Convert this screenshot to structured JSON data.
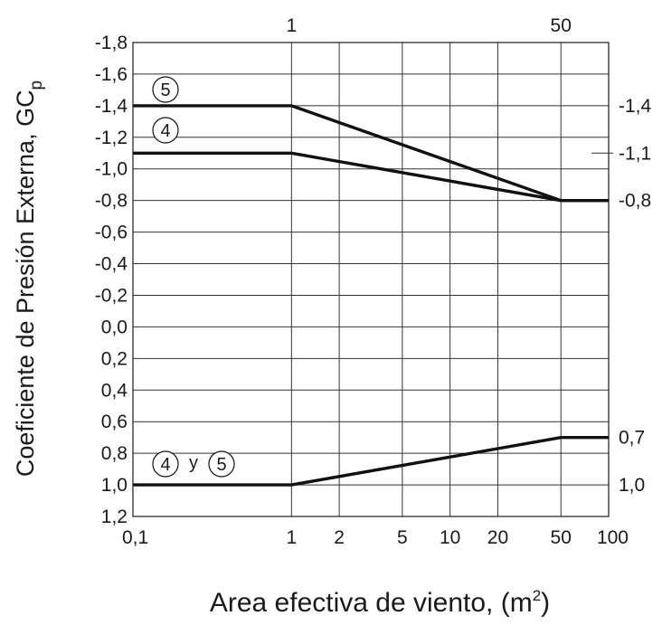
{
  "chart_data": {
    "type": "line",
    "title": "",
    "xlabel": "Area efectiva de viento, (m",
    "xlabel_sup": "2",
    "xlabel_end": ")",
    "ylabel": "Coeficiente de Presión Externa, GC",
    "ylabel_sub": "p",
    "x_scale": "log",
    "xlim": [
      0.1,
      100
    ],
    "ylim": [
      -1.8,
      1.2
    ],
    "y_inverted": true,
    "grid": true,
    "x_ticks": [
      "0,1",
      "1",
      "2",
      "5",
      "10",
      "20",
      "50",
      "100"
    ],
    "x_tick_values": [
      0.1,
      1,
      2,
      5,
      10,
      20,
      50,
      100
    ],
    "top_ticks": [
      "1",
      "50"
    ],
    "top_tick_values": [
      1,
      50
    ],
    "y_ticks": [
      "-1,8",
      "-1,6",
      "-1,4",
      "-1,2",
      "-1,0",
      "-0,8",
      "-0,6",
      "-0,4",
      "-0,2",
      "0,0",
      "0,2",
      "0,4",
      "0,6",
      "0,8",
      "1,0",
      "1,2"
    ],
    "y_tick_values": [
      -1.8,
      -1.6,
      -1.4,
      -1.2,
      -1.0,
      -0.8,
      -0.6,
      -0.4,
      -0.2,
      0.0,
      0.2,
      0.4,
      0.6,
      0.8,
      1.0,
      1.2
    ],
    "right_labels": [
      {
        "text": "-1,4",
        "value": -1.4
      },
      {
        "text": "-1,1",
        "value": -1.1
      },
      {
        "text": "-0,8",
        "value": -0.8
      },
      {
        "text": "0,7",
        "value": 0.7
      },
      {
        "text": "1,0",
        "value": 1.0
      }
    ],
    "series": [
      {
        "name": "5",
        "x": [
          0.1,
          1,
          50,
          100
        ],
        "y": [
          -1.4,
          -1.4,
          -0.8,
          -0.8
        ]
      },
      {
        "name": "4",
        "x": [
          0.1,
          1,
          50,
          100
        ],
        "y": [
          -1.1,
          -1.1,
          -0.8,
          -0.8
        ]
      },
      {
        "name": "4 y 5",
        "x": [
          0.1,
          1,
          50,
          100
        ],
        "y": [
          1.0,
          1.0,
          0.7,
          0.7
        ]
      }
    ],
    "zone_labels": {
      "zone5": "5",
      "zone4": "4",
      "zone45_a": "4",
      "zone45_y": "y",
      "zone45_b": "5"
    }
  }
}
